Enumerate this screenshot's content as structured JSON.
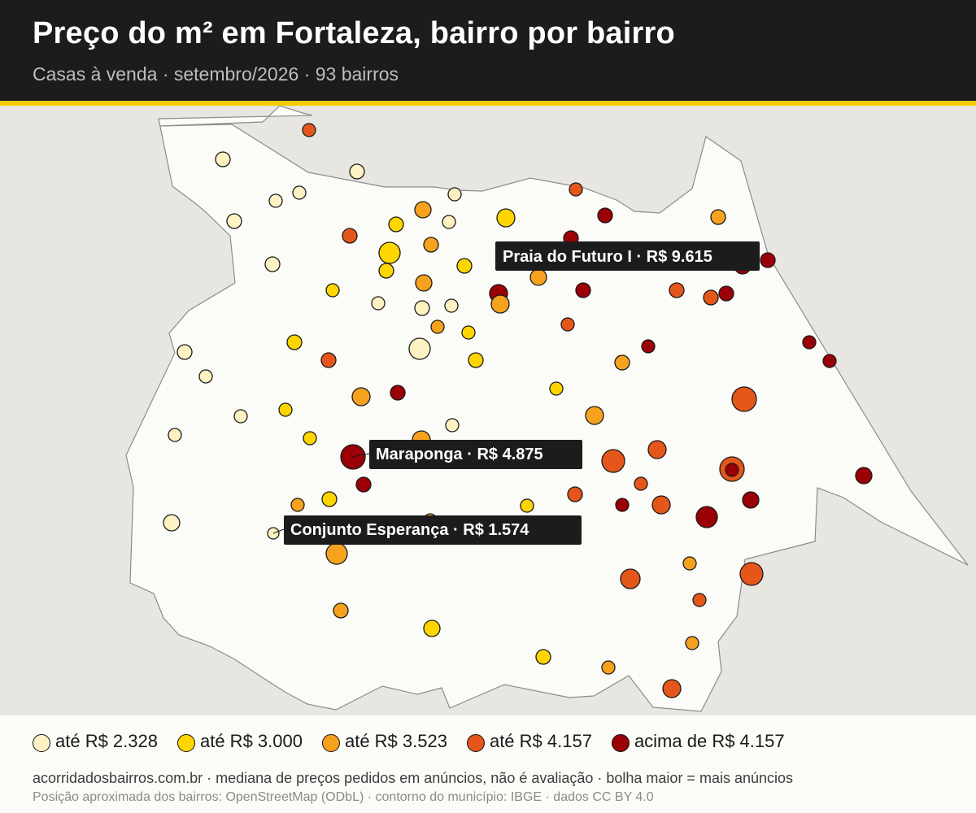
{
  "header": {
    "title": "Preço do m² em Fortaleza, bairro por bairro",
    "subtitle": "Casas à venda · setembro/2026 · 93 bairros"
  },
  "colors": {
    "header_bg": "#1c1c1c",
    "accent": "#f4cc00",
    "ocean": "#e8e6e1",
    "municipality_fill": "#fbfbf8",
    "municipality_stroke": "#8c8c8c",
    "tier_1": "#fff2c2",
    "tier_2": "#ffd500",
    "tier_3": "#f6a21e",
    "tier_4": "#e5561a",
    "tier_5": "#9a0006",
    "callout_bg": "#1c1c1c"
  },
  "legend": [
    {
      "tier": 1,
      "label": "até R$ 2.328"
    },
    {
      "tier": 2,
      "label": "até R$ 3.000"
    },
    {
      "tier": 3,
      "label": "até R$ 3.523"
    },
    {
      "tier": 4,
      "label": "até R$ 4.157"
    },
    {
      "tier": 5,
      "label": "acima de R$ 4.157"
    }
  ],
  "callouts": [
    {
      "text": "Praia do Futuro I · R$ 9.615",
      "tier": 5
    },
    {
      "text": "Maraponga · R$ 4.875",
      "tier": 5
    },
    {
      "text": "Conjunto Esperança · R$ 1.574",
      "tier": 1
    }
  ],
  "footer": {
    "note": "acorridadosbairros.com.br · mediana de preços pedidos em anúncios, não é avaliação · bolha maior = mais anúncios",
    "credits": "Posição aproximada dos bairros: OpenStreetMap (ODbL) · contorno do município: IBGE · dados CC BY 4.0"
  }
}
